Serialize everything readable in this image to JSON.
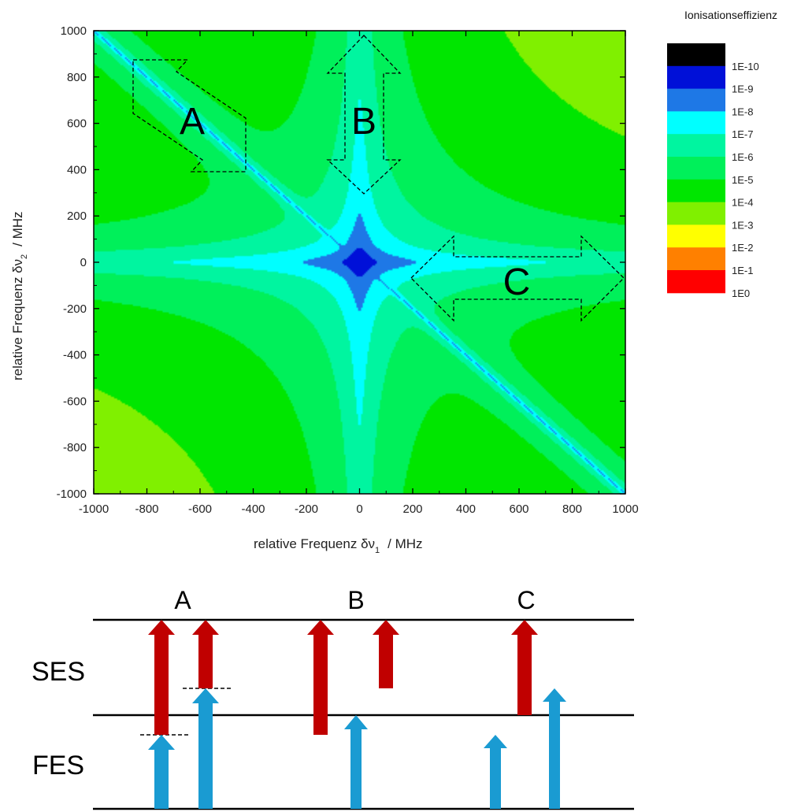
{
  "chart_data": {
    "type": "heatmap",
    "xlabel": "relative Frequenz δν",
    "xlabel_sub": "1",
    "xlabel_unit": "/ MHz",
    "ylabel": "relative Frequenz δν",
    "ylabel_sub": "2",
    "ylabel_unit": "/ MHz",
    "xlim": [
      -1000,
      1000
    ],
    "ylim": [
      -1000,
      1000
    ],
    "x_ticks": [
      -1000,
      -800,
      -600,
      -400,
      -200,
      0,
      200,
      400,
      600,
      800,
      1000
    ],
    "y_ticks": [
      1000,
      800,
      600,
      400,
      200,
      0,
      -200,
      -400,
      -600,
      -800,
      -1000
    ],
    "legend": {
      "title": "Ionisationseffizienz",
      "placement": "right",
      "colors": [
        "#000000",
        "#0010d8",
        "#1e78e6",
        "#00ffff",
        "#00f5a0",
        "#00f05a",
        "#00e600",
        "#80f000",
        "#ffff00",
        "#ff8000",
        "#ff0000"
      ],
      "labels": [
        "1E-10",
        "1E-9",
        "1E-8",
        "1E-7",
        "1E-6",
        "1E-5",
        "1E-4",
        "1E-3",
        "1E-2",
        "1E-1",
        "1E0"
      ]
    },
    "annotations": [
      {
        "label": "A",
        "direction": "diagonal"
      },
      {
        "label": "B",
        "direction": "vertical"
      },
      {
        "label": "C",
        "direction": "horizontal"
      }
    ]
  },
  "diagram": {
    "levels": [
      "SES",
      "FES"
    ],
    "columns": [
      {
        "label": "A"
      },
      {
        "label": "B"
      },
      {
        "label": "C"
      }
    ],
    "colors": {
      "red_arrow": "#c00000",
      "blue_arrow": "#1a9bd2",
      "line": "#000000"
    }
  }
}
